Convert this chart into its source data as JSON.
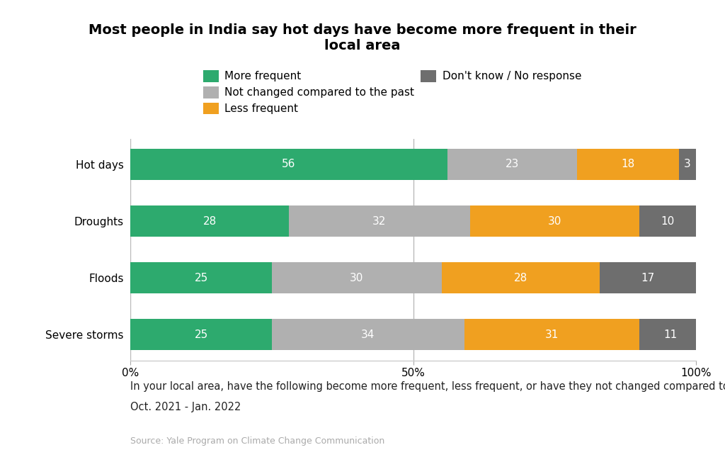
{
  "title": "Most people in India say hot days have become more frequent in their\nlocal area",
  "categories": [
    "Hot days",
    "Droughts",
    "Floods",
    "Severe storms"
  ],
  "series": {
    "More frequent": [
      56,
      28,
      25,
      25
    ],
    "Not changed compared to the past": [
      23,
      32,
      30,
      34
    ],
    "Less frequent": [
      18,
      30,
      28,
      31
    ],
    "Don't know / No response": [
      3,
      10,
      17,
      11
    ]
  },
  "colors": {
    "More frequent": "#2daa6e",
    "Not changed compared to the past": "#b0b0b0",
    "Less frequent": "#f0a020",
    "Don't know / No response": "#6e6e6e"
  },
  "xlabel_ticks": [
    "0%",
    "50%",
    "100%"
  ],
  "xlabel_tick_vals": [
    0,
    50,
    100
  ],
  "footnote1": "In your local area, have the following become more frequent, less frequent, or have they not changed compared to the past?",
  "footnote2": "Oct. 2021 - Jan. 2022",
  "source": "Source: Yale Program on Climate Change Communication",
  "background_color": "#ffffff",
  "bar_height": 0.55,
  "title_fontsize": 14,
  "label_fontsize": 11,
  "tick_fontsize": 11,
  "legend_fontsize": 11,
  "footnote_fontsize": 10.5,
  "source_fontsize": 9
}
